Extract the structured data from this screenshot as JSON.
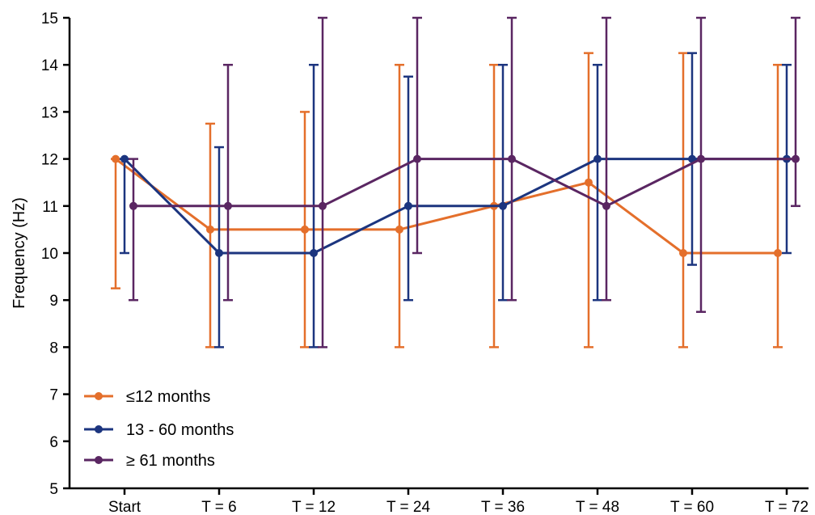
{
  "chart_data": {
    "type": "line",
    "title": "",
    "xlabel": "",
    "ylabel": "Frequency (Hz)",
    "ylim": [
      5,
      15
    ],
    "yticks": [
      "5",
      "6",
      "7",
      "8",
      "9",
      "10",
      "11",
      "12",
      "13",
      "14",
      "15"
    ],
    "categories": [
      "Start",
      "T = 6",
      "T = 12",
      "T = 24",
      "T = 36",
      "T = 48",
      "T = 60",
      "T = 72"
    ],
    "legend_position": "bottom-left",
    "grid": false,
    "series": [
      {
        "name": "≤12 months",
        "color": "#E46F2B",
        "values": [
          12,
          10.5,
          10.5,
          10.5,
          11,
          11.5,
          10,
          10
        ],
        "err_low": [
          9.25,
          8,
          8,
          8,
          8,
          8,
          8,
          8
        ],
        "err_high": [
          12,
          12.75,
          13,
          14,
          14,
          14.25,
          14.25,
          14
        ]
      },
      {
        "name": "13 - 60 months",
        "color": "#1C357F",
        "values": [
          12,
          10,
          10,
          11,
          11,
          12,
          12,
          12
        ],
        "err_low": [
          10,
          8,
          8,
          9,
          9,
          9,
          9.75,
          10
        ],
        "err_high": [
          12,
          12.25,
          14,
          13.75,
          14,
          14,
          14.25,
          14
        ]
      },
      {
        "name": "≥ 61 months",
        "color": "#5A2662",
        "values": [
          11,
          11,
          11,
          12,
          12,
          11,
          12,
          12
        ],
        "err_low": [
          9,
          9,
          8,
          10,
          9,
          9,
          8.75,
          11
        ],
        "err_high": [
          12,
          14,
          15,
          15,
          15,
          15,
          15,
          15
        ]
      }
    ]
  }
}
